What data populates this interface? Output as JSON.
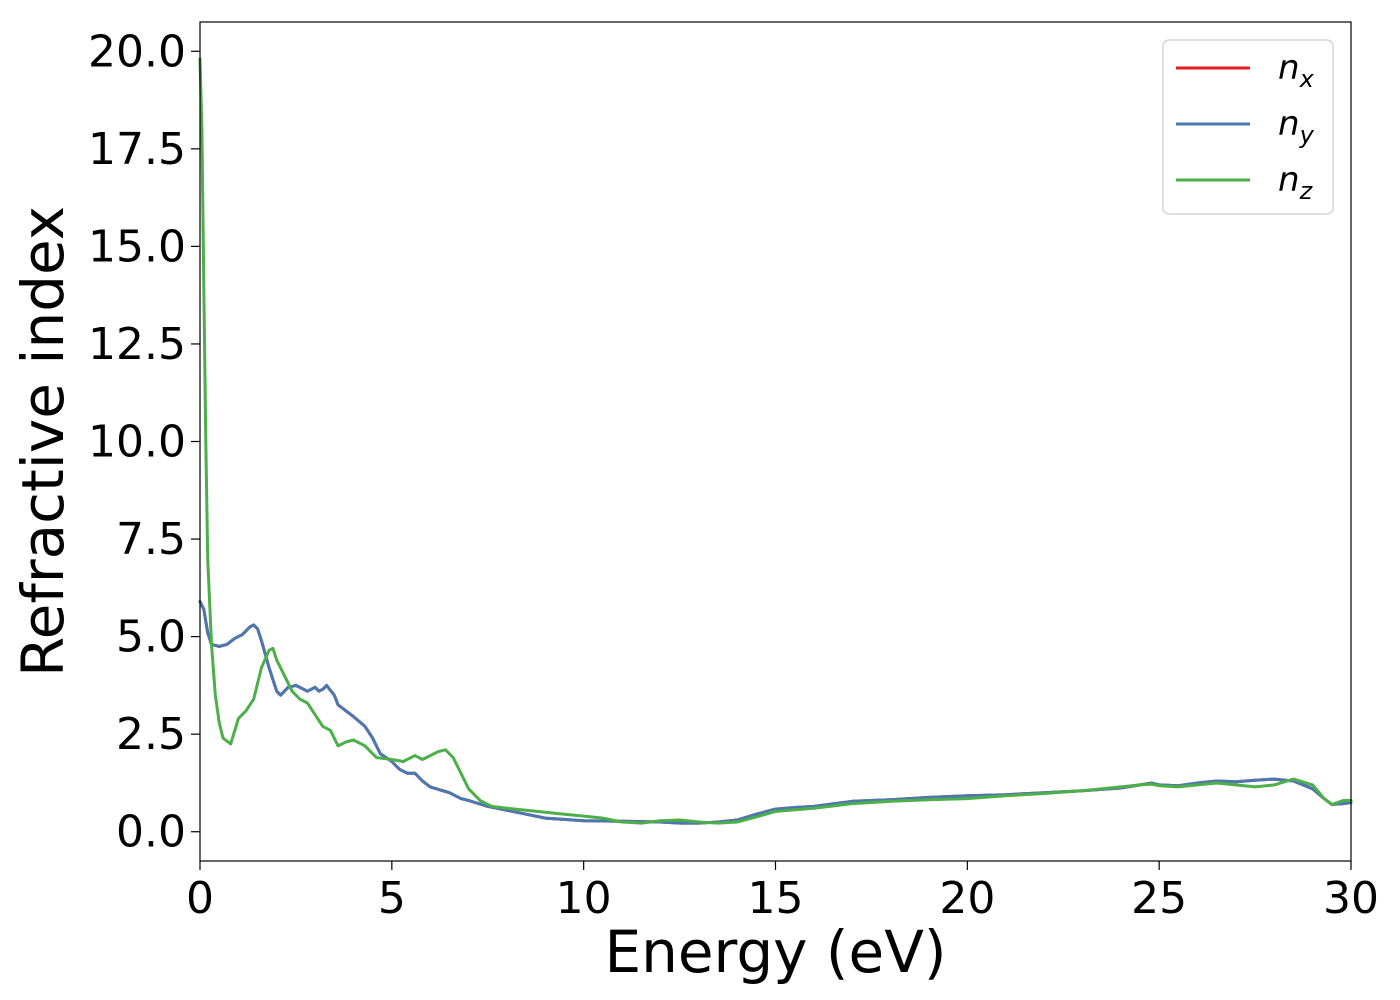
{
  "chart_data": {
    "type": "line",
    "xlabel": "Energy (eV)",
    "ylabel": "Refractive index",
    "xlim": [
      0,
      30
    ],
    "ylim": [
      -0.75,
      20.75
    ],
    "x_ticks": [
      0,
      5,
      10,
      15,
      20,
      25,
      30
    ],
    "x_tick_labels": [
      "0",
      "5",
      "10",
      "15",
      "20",
      "25",
      "30"
    ],
    "y_ticks": [
      0,
      2.5,
      5,
      7.5,
      10,
      12.5,
      15,
      17.5,
      20
    ],
    "y_tick_labels": [
      "0.0",
      "2.5",
      "5.0",
      "7.5",
      "10.0",
      "12.5",
      "15.0",
      "17.5",
      "20.0"
    ],
    "grid": false,
    "legend_position": "top-right",
    "series": [
      {
        "name": "n",
        "subscript": "x",
        "color": "#e41a1c",
        "x": [
          0,
          0.1,
          0.2,
          0.3,
          0.5,
          0.7,
          0.9,
          1.0,
          1.1,
          1.3,
          1.4,
          1.5,
          1.6,
          1.8,
          2.0,
          2.1,
          2.3,
          2.5,
          2.8,
          3.0,
          3.1,
          3.2,
          3.3,
          3.5,
          3.6,
          4.0,
          4.3,
          4.5,
          4.7,
          5.0,
          5.2,
          5.4,
          5.6,
          5.8,
          6.0,
          6.5,
          6.8,
          7.0,
          7.5,
          8.0,
          8.5,
          9.0,
          10.0,
          11.0,
          12.0,
          12.5,
          13.0,
          13.5,
          14.0,
          14.5,
          15.0,
          15.5,
          16.0,
          17.0,
          18.0,
          19.0,
          20.0,
          21.0,
          22.0,
          23.0,
          24.0,
          24.5,
          24.8,
          25.0,
          25.5,
          26.0,
          26.5,
          27.0,
          27.5,
          28.0,
          28.5,
          29.0,
          29.3,
          29.5,
          29.8,
          30.0
        ],
        "y": [
          5.9,
          5.7,
          5.1,
          4.8,
          4.75,
          4.8,
          4.95,
          5.0,
          5.05,
          5.25,
          5.3,
          5.2,
          4.9,
          4.2,
          3.6,
          3.5,
          3.7,
          3.75,
          3.6,
          3.7,
          3.6,
          3.65,
          3.75,
          3.5,
          3.25,
          2.95,
          2.7,
          2.4,
          2.0,
          1.8,
          1.6,
          1.5,
          1.5,
          1.3,
          1.15,
          1.0,
          0.85,
          0.8,
          0.65,
          0.55,
          0.45,
          0.35,
          0.28,
          0.27,
          0.25,
          0.22,
          0.22,
          0.25,
          0.3,
          0.45,
          0.58,
          0.62,
          0.65,
          0.78,
          0.82,
          0.88,
          0.92,
          0.95,
          1.0,
          1.05,
          1.12,
          1.2,
          1.25,
          1.2,
          1.18,
          1.25,
          1.3,
          1.28,
          1.32,
          1.35,
          1.3,
          1.1,
          0.85,
          0.7,
          0.72,
          0.75
        ]
      },
      {
        "name": "n",
        "subscript": "y",
        "color": "#4a78b0",
        "x": [
          0,
          0.1,
          0.2,
          0.3,
          0.5,
          0.7,
          0.9,
          1.0,
          1.1,
          1.3,
          1.4,
          1.5,
          1.6,
          1.8,
          2.0,
          2.1,
          2.3,
          2.5,
          2.8,
          3.0,
          3.1,
          3.2,
          3.3,
          3.5,
          3.6,
          4.0,
          4.3,
          4.5,
          4.7,
          5.0,
          5.2,
          5.4,
          5.6,
          5.8,
          6.0,
          6.5,
          6.8,
          7.0,
          7.5,
          8.0,
          8.5,
          9.0,
          10.0,
          11.0,
          12.0,
          12.5,
          13.0,
          13.5,
          14.0,
          14.5,
          15.0,
          15.5,
          16.0,
          17.0,
          18.0,
          19.0,
          20.0,
          21.0,
          22.0,
          23.0,
          24.0,
          24.5,
          24.8,
          25.0,
          25.5,
          26.0,
          26.5,
          27.0,
          27.5,
          28.0,
          28.5,
          29.0,
          29.3,
          29.5,
          29.8,
          30.0
        ],
        "y": [
          5.9,
          5.7,
          5.1,
          4.8,
          4.75,
          4.8,
          4.95,
          5.0,
          5.05,
          5.25,
          5.3,
          5.2,
          4.9,
          4.2,
          3.6,
          3.5,
          3.7,
          3.75,
          3.6,
          3.7,
          3.6,
          3.65,
          3.75,
          3.5,
          3.25,
          2.95,
          2.7,
          2.4,
          2.0,
          1.8,
          1.6,
          1.5,
          1.5,
          1.3,
          1.15,
          1.0,
          0.85,
          0.8,
          0.65,
          0.55,
          0.45,
          0.35,
          0.28,
          0.27,
          0.25,
          0.22,
          0.22,
          0.25,
          0.3,
          0.45,
          0.58,
          0.62,
          0.65,
          0.78,
          0.82,
          0.88,
          0.92,
          0.95,
          1.0,
          1.05,
          1.12,
          1.2,
          1.25,
          1.2,
          1.18,
          1.25,
          1.3,
          1.28,
          1.32,
          1.35,
          1.3,
          1.1,
          0.85,
          0.7,
          0.72,
          0.75
        ]
      },
      {
        "name": "n",
        "subscript": "z",
        "color": "#4daf4a",
        "x": [
          0,
          0.05,
          0.1,
          0.15,
          0.2,
          0.3,
          0.4,
          0.5,
          0.6,
          0.8,
          1.0,
          1.2,
          1.4,
          1.6,
          1.8,
          1.9,
          2.0,
          2.2,
          2.4,
          2.6,
          2.8,
          3.0,
          3.2,
          3.4,
          3.6,
          3.8,
          4.0,
          4.3,
          4.6,
          5.0,
          5.3,
          5.6,
          5.8,
          6.0,
          6.2,
          6.4,
          6.6,
          6.8,
          7.0,
          7.3,
          7.6,
          8.0,
          8.5,
          9.0,
          9.5,
          10.0,
          10.5,
          11.0,
          11.5,
          12.0,
          12.5,
          13.0,
          13.5,
          14.0,
          14.5,
          15.0,
          16.0,
          17.0,
          18.0,
          19.0,
          20.0,
          21.0,
          22.0,
          23.0,
          24.0,
          24.5,
          24.8,
          25.0,
          25.5,
          26.0,
          26.5,
          27.0,
          27.5,
          28.0,
          28.5,
          29.0,
          29.3,
          29.5,
          29.8,
          30.0
        ],
        "y": [
          19.8,
          18.0,
          14.0,
          10.0,
          7.0,
          4.8,
          3.5,
          2.8,
          2.4,
          2.25,
          2.9,
          3.1,
          3.4,
          4.2,
          4.65,
          4.7,
          4.4,
          4.0,
          3.6,
          3.4,
          3.3,
          3.0,
          2.7,
          2.6,
          2.2,
          2.3,
          2.35,
          2.2,
          1.9,
          1.85,
          1.8,
          1.95,
          1.85,
          1.95,
          2.05,
          2.1,
          1.9,
          1.5,
          1.1,
          0.8,
          0.65,
          0.6,
          0.55,
          0.5,
          0.45,
          0.4,
          0.35,
          0.25,
          0.22,
          0.28,
          0.3,
          0.25,
          0.22,
          0.25,
          0.38,
          0.52,
          0.6,
          0.72,
          0.78,
          0.82,
          0.85,
          0.92,
          0.98,
          1.05,
          1.15,
          1.2,
          1.22,
          1.18,
          1.15,
          1.2,
          1.25,
          1.2,
          1.15,
          1.2,
          1.35,
          1.2,
          0.85,
          0.7,
          0.8,
          0.8
        ]
      }
    ]
  }
}
